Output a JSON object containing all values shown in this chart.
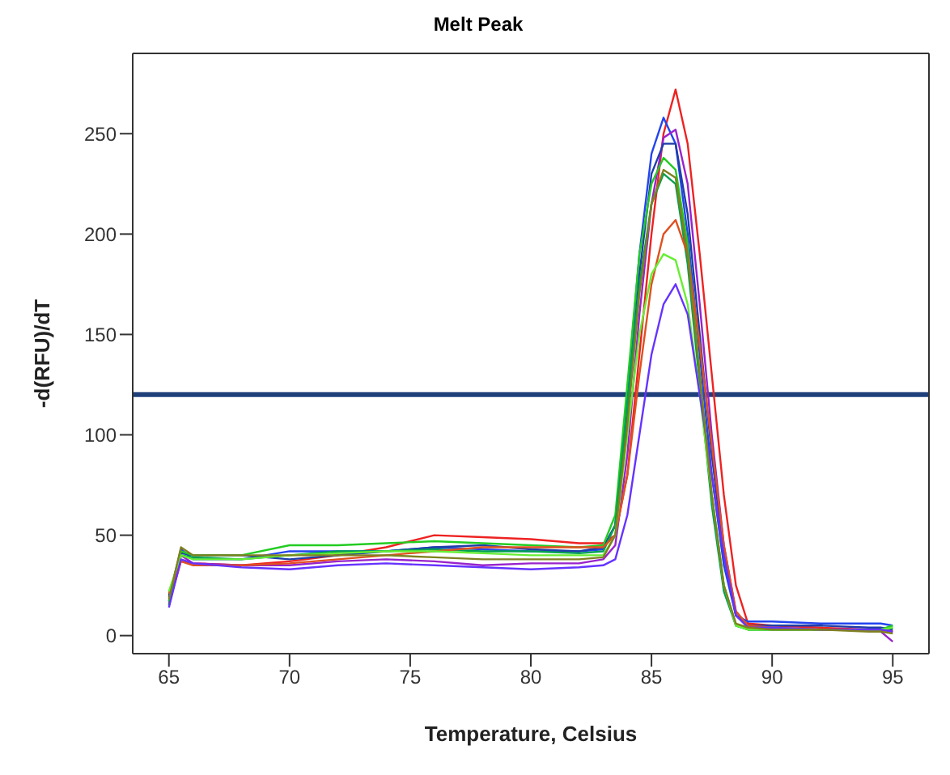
{
  "chart_data": {
    "type": "line",
    "title": "Melt Peak",
    "xlabel": "Temperature, Celsius",
    "ylabel": "-d(RFU)/dT",
    "x": [
      65,
      65.5,
      66,
      68,
      70,
      72,
      74,
      76,
      78,
      80,
      82,
      83,
      83.5,
      84,
      84.5,
      85,
      85.5,
      86,
      86.5,
      87,
      87.5,
      88,
      88.5,
      89,
      90,
      92,
      94,
      94.5,
      95
    ],
    "series": [
      {
        "color": "#ee2222",
        "values": [
          16,
          37,
          36,
          35,
          37,
          40,
          44,
          50,
          49,
          48,
          46,
          46,
          50,
          80,
          140,
          200,
          250,
          272,
          245,
          190,
          130,
          70,
          25,
          6,
          5,
          4,
          3,
          3,
          2
        ]
      },
      {
        "color": "#2244ee",
        "values": [
          19,
          43,
          38,
          38,
          42,
          42,
          42,
          44,
          43,
          42,
          42,
          43,
          55,
          120,
          190,
          240,
          258,
          245,
          200,
          140,
          80,
          35,
          10,
          7,
          7,
          6,
          6,
          6,
          5
        ]
      },
      {
        "color": "#9922cc",
        "values": [
          17,
          40,
          36,
          35,
          35,
          37,
          38,
          37,
          35,
          36,
          36,
          38,
          45,
          90,
          160,
          215,
          248,
          252,
          225,
          165,
          100,
          45,
          12,
          5,
          4,
          3,
          3,
          2,
          -3
        ]
      },
      {
        "color": "#1f3ea8",
        "values": [
          20,
          41,
          40,
          40,
          38,
          40,
          42,
          44,
          45,
          43,
          42,
          44,
          55,
          110,
          180,
          230,
          245,
          245,
          210,
          150,
          90,
          40,
          10,
          5,
          5,
          5,
          4,
          4,
          3
        ]
      },
      {
        "color": "#22cc22",
        "values": [
          17,
          42,
          40,
          40,
          45,
          45,
          46,
          47,
          46,
          45,
          44,
          45,
          60,
          125,
          190,
          225,
          238,
          232,
          195,
          130,
          70,
          25,
          5,
          3,
          3,
          3,
          3,
          3,
          5
        ]
      },
      {
        "color": "#00a050",
        "values": [
          15,
          40,
          39,
          38,
          40,
          42,
          42,
          43,
          42,
          42,
          41,
          42,
          55,
          115,
          175,
          215,
          230,
          225,
          185,
          125,
          65,
          22,
          5,
          3,
          3,
          3,
          3,
          3,
          4
        ]
      },
      {
        "color": "#e05020",
        "values": [
          21,
          37,
          35,
          35,
          36,
          38,
          40,
          42,
          44,
          44,
          44,
          44,
          50,
          80,
          130,
          175,
          200,
          207,
          190,
          145,
          95,
          45,
          12,
          5,
          4,
          3,
          3,
          3,
          2
        ]
      },
      {
        "color": "#66ee33",
        "values": [
          22,
          40,
          38,
          38,
          40,
          41,
          42,
          42,
          41,
          40,
          40,
          40,
          50,
          100,
          150,
          180,
          190,
          187,
          165,
          120,
          70,
          25,
          5,
          3,
          3,
          3,
          3,
          3,
          4
        ]
      },
      {
        "color": "#6633ff",
        "values": [
          14,
          38,
          36,
          34,
          33,
          35,
          36,
          35,
          34,
          33,
          34,
          35,
          38,
          60,
          100,
          140,
          165,
          175,
          160,
          120,
          80,
          40,
          10,
          4,
          4,
          3,
          3,
          3,
          2
        ]
      },
      {
        "color": "#808020",
        "values": [
          18,
          44,
          40,
          40,
          40,
          40,
          40,
          39,
          38,
          38,
          38,
          39,
          50,
          105,
          170,
          215,
          232,
          228,
          190,
          130,
          70,
          25,
          6,
          4,
          3,
          3,
          2,
          2,
          1
        ]
      }
    ],
    "xlim": [
      63.5,
      96.5
    ],
    "xticks": [
      65,
      70,
      75,
      80,
      85,
      90,
      95
    ],
    "ylim": [
      -9,
      290
    ],
    "yticks": [
      0,
      50,
      100,
      150,
      200,
      250
    ],
    "ref_lines": [
      {
        "axis": "y",
        "value": 120,
        "color": "#1f3f7a"
      }
    ],
    "grid": false,
    "legend": false,
    "marker": "none",
    "line_style": "solid"
  }
}
